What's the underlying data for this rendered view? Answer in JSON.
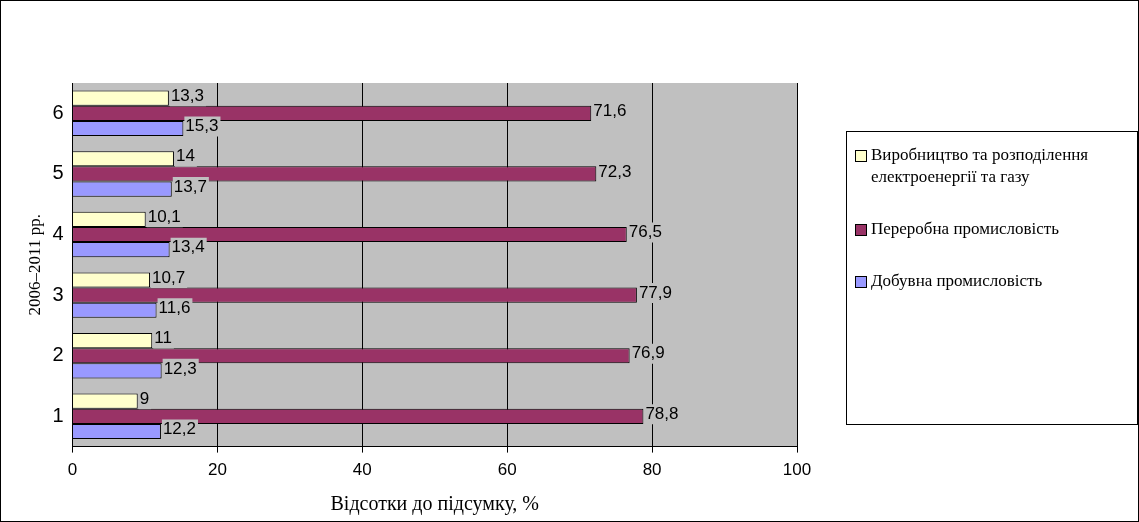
{
  "chart_data": {
    "type": "bar",
    "orientation": "horizontal",
    "xlabel": "Відсотки до підсумку, %",
    "ylabel": "2006–2011 рр.",
    "categories": [
      "6",
      "5",
      "4",
      "3",
      "2",
      "1"
    ],
    "series": [
      {
        "name": "Виробництво та розподілення електроенергії та газу",
        "color": "#ffffcc",
        "values": [
          13.3,
          14,
          10.1,
          10.7,
          11,
          9
        ],
        "value_labels": [
          "13,3",
          "14",
          "10,1",
          "10,7",
          "11",
          "9"
        ]
      },
      {
        "name": "Переробна промисловість",
        "color": "#993366",
        "values": [
          71.6,
          72.3,
          76.5,
          77.9,
          76.9,
          78.8
        ],
        "value_labels": [
          "71,6",
          "72,3",
          "76,5",
          "77,9",
          "76,9",
          "78,8"
        ]
      },
      {
        "name": "Добувна промисловість",
        "color": "#9999ff",
        "values": [
          15.3,
          13.7,
          13.4,
          11.6,
          12.3,
          12.2
        ],
        "value_labels": [
          "15,3",
          "13,7",
          "13,4",
          "11,6",
          "12,3",
          "12,2"
        ]
      }
    ],
    "xlim": [
      0,
      100
    ],
    "xticks": [
      0,
      20,
      40,
      60,
      80,
      100
    ],
    "grid": "x",
    "legend": "right"
  }
}
